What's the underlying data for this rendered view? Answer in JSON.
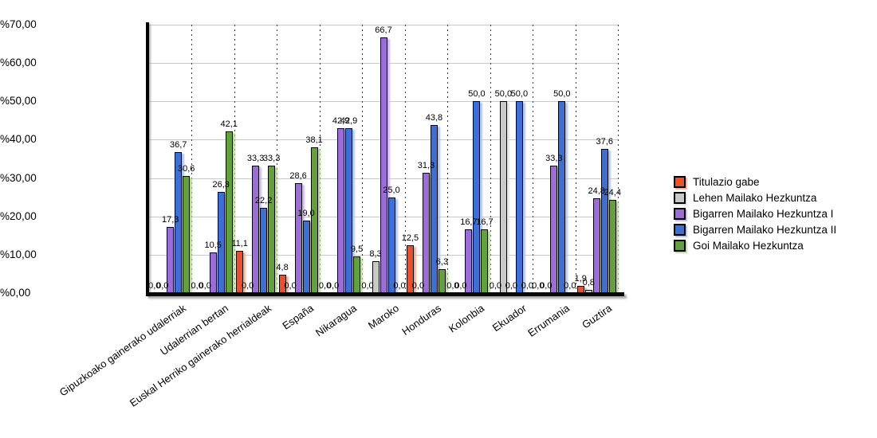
{
  "chart_data": {
    "type": "bar",
    "title": "",
    "xlabel": "",
    "ylabel": "",
    "ylim": [
      0,
      70
    ],
    "y_ticks": [
      "%0,00",
      "%10,00",
      "%20,00",
      "%30,00",
      "%40,00",
      "%50,00",
      "%60,00",
      "%70,00"
    ],
    "grid": "horizontal-solid-and-vertical-dotted",
    "legend_position": "right",
    "decimal_separator": ",",
    "categories": [
      "Gipuzkoako gainerako udalerriak",
      "Udalerrian bertan",
      "Euskal Herriko gainerako herrialdeak",
      "España",
      "Nikaragua",
      "Maroko",
      "Honduras",
      "Kolonbia",
      "Ekuador",
      "Errumania",
      "Guztira"
    ],
    "series": [
      {
        "name": "Titulazio gabe",
        "color": "#E8502E",
        "shadow": "#F5AD97",
        "values": [
          0.0,
          0.0,
          11.1,
          4.8,
          0.0,
          0.0,
          12.5,
          0.0,
          0.0,
          0.0,
          1.9
        ]
      },
      {
        "name": "Lehen Mailako Hezkuntza",
        "color": "#C9C9C9",
        "shadow": "#E4E4E4",
        "values": [
          0.0,
          0.0,
          0.0,
          0.0,
          0.0,
          8.3,
          0.0,
          0.0,
          50.0,
          0.0,
          0.8
        ]
      },
      {
        "name": "Bigarren Mailako Hezkuntza I",
        "color": "#9A6DD7",
        "shadow": "#CFB6EE",
        "values": [
          17.3,
          10.5,
          33.3,
          28.6,
          42.9,
          66.7,
          31.3,
          16.7,
          0.0,
          33.3,
          24.8
        ]
      },
      {
        "name": "Bigarren Mailako Hezkuntza II",
        "color": "#3E6FD3",
        "shadow": "#AEC5EF",
        "values": [
          36.7,
          26.3,
          22.2,
          19.0,
          42.9,
          25.0,
          43.8,
          50.0,
          50.0,
          50.0,
          37.6
        ]
      },
      {
        "name": "Goi Mailako Hezkuntza",
        "color": "#64A03C",
        "shadow": "#BFDAA5",
        "values": [
          30.6,
          42.1,
          33.3,
          38.1,
          9.5,
          0.0,
          6.3,
          16.7,
          0.0,
          0.0,
          24.4
        ]
      }
    ]
  }
}
